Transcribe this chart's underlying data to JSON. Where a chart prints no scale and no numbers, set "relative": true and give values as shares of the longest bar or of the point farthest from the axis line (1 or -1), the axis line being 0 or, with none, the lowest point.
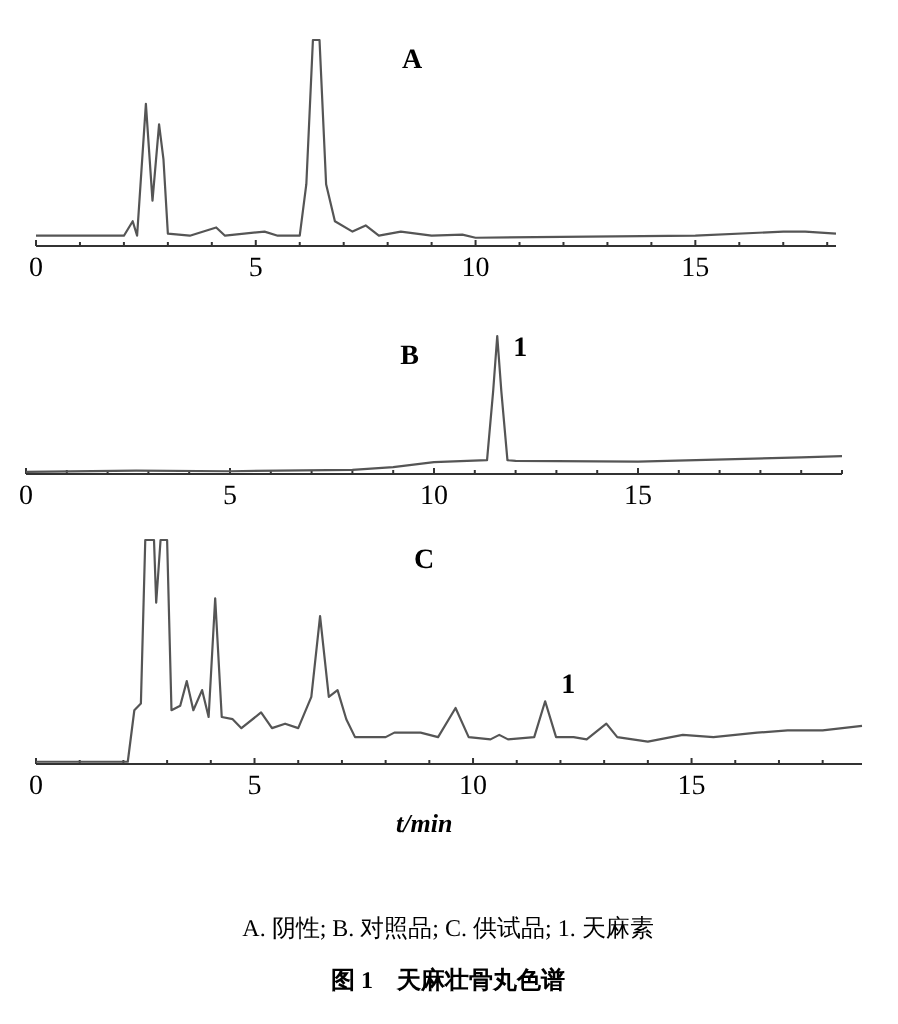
{
  "chart_data": [
    {
      "type": "line",
      "relative": true,
      "xlim": [
        0,
        18.2
      ],
      "xticks": [
        0,
        {
          "value": 1,
          "label": null
        },
        {
          "value": 2,
          "label": null
        },
        {
          "value": 3,
          "label": null
        },
        {
          "value": 4,
          "label": null
        },
        5,
        {
          "value": 6,
          "label": null
        },
        {
          "value": 7,
          "label": null
        },
        {
          "value": 8,
          "label": null
        },
        {
          "value": 9,
          "label": null
        },
        10,
        {
          "value": 11,
          "label": null
        },
        {
          "value": 12,
          "label": null
        },
        {
          "value": 13,
          "label": null
        },
        {
          "value": 14,
          "label": null
        },
        15,
        {
          "value": 16,
          "label": null
        },
        {
          "value": 17,
          "label": null
        },
        {
          "value": 18,
          "label": null
        }
      ],
      "annotations": [
        "A"
      ],
      "series": [
        {
          "color": "#555555",
          "x": [
            0,
            2.0,
            2.2,
            2.3,
            2.5,
            2.65,
            2.8,
            2.9,
            3.0,
            3.5,
            4.1,
            4.3,
            5.2,
            5.5,
            6.0,
            6.15,
            6.3,
            6.45,
            6.6,
            6.8,
            7.2,
            7.5,
            7.8,
            8.3,
            9,
            9.7,
            10,
            15,
            17,
            17.5,
            18.2
          ],
          "values": [
            0.05,
            0.05,
            0.12,
            0.05,
            0.69,
            0.22,
            0.59,
            0.42,
            0.06,
            0.05,
            0.09,
            0.05,
            0.07,
            0.05,
            0.05,
            0.3,
            1,
            1,
            0.3,
            0.12,
            0.07,
            0.1,
            0.05,
            0.07,
            0.05,
            0.055,
            0.04,
            0.05,
            0.07,
            0.07,
            0.06
          ]
        }
      ]
    },
    {
      "type": "line",
      "relative": true,
      "xlim": [
        0,
        20
      ],
      "xticks": [
        0,
        {
          "value": 1,
          "label": null
        },
        {
          "value": 2,
          "label": null
        },
        {
          "value": 3,
          "label": null
        },
        {
          "value": 4,
          "label": null
        },
        5,
        {
          "value": 6,
          "label": null
        },
        {
          "value": 7,
          "label": null
        },
        {
          "value": 8,
          "label": null
        },
        {
          "value": 9,
          "label": null
        },
        10,
        {
          "value": 11,
          "label": null
        },
        {
          "value": 12,
          "label": null
        },
        {
          "value": 13,
          "label": null
        },
        {
          "value": 14,
          "label": null
        },
        15,
        {
          "value": 16,
          "label": null
        },
        {
          "value": 17,
          "label": null
        },
        {
          "value": 18,
          "label": null
        },
        {
          "value": 19,
          "label": null
        },
        {
          "value": 20,
          "label": null
        }
      ],
      "annotations": [
        "B",
        {
          "text": "1",
          "x": 11.55,
          "y": 1
        }
      ],
      "series": [
        {
          "color": "#555555",
          "x": [
            0,
            2.7,
            5,
            8,
            9,
            10,
            11.3,
            11.45,
            11.55,
            11.65,
            11.8,
            12,
            15,
            19,
            20
          ],
          "values": [
            0.016,
            0.025,
            0.02,
            0.03,
            0.05,
            0.086,
            0.1,
            0.6,
            1,
            0.6,
            0.1,
            0.095,
            0.09,
            0.12,
            0.13
          ]
        }
      ]
    },
    {
      "type": "line",
      "relative": true,
      "xlim": [
        0,
        18.9
      ],
      "xticks": [
        0,
        {
          "value": 1,
          "label": null
        },
        {
          "value": 2,
          "label": null
        },
        {
          "value": 3,
          "label": null
        },
        {
          "value": 4,
          "label": null
        },
        5,
        {
          "value": 6,
          "label": null
        },
        {
          "value": 7,
          "label": null
        },
        {
          "value": 8,
          "label": null
        },
        {
          "value": 9,
          "label": null
        },
        10,
        {
          "value": 11,
          "label": null
        },
        {
          "value": 12,
          "label": null
        },
        {
          "value": 13,
          "label": null
        },
        {
          "value": 14,
          "label": null
        },
        15,
        {
          "value": 16,
          "label": null
        },
        {
          "value": 17,
          "label": null
        },
        {
          "value": 18,
          "label": null
        }
      ],
      "xlabel": "t/min",
      "title": "图 1　天麻壮骨丸色谱",
      "annotations": [
        "C",
        {
          "text": "1",
          "x": 11.65,
          "y": 0.28
        },
        "A. 阴性; B. 对照品; C. 供试品; 1. 天麻素"
      ],
      "series": [
        {
          "color": "#555555",
          "x": [
            0,
            2.1,
            2.25,
            2.4,
            2.5,
            2.7,
            2.75,
            2.85,
            3.0,
            3.1,
            3.3,
            3.45,
            3.6,
            3.8,
            3.95,
            4.1,
            4.25,
            4.5,
            4.7,
            5.15,
            5.4,
            5.7,
            6.0,
            6.3,
            6.5,
            6.7,
            6.9,
            7.1,
            7.3,
            8.0,
            8.2,
            8.8,
            9.2,
            9.6,
            9.9,
            10.4,
            10.6,
            10.8,
            11.4,
            11.65,
            11.9,
            12.3,
            12.6,
            13.05,
            13.3,
            14,
            14.8,
            15.5,
            16.5,
            17.2,
            18,
            18.9
          ],
          "values": [
            0.01,
            0.01,
            0.24,
            0.27,
            1,
            1,
            0.72,
            1,
            1,
            0.24,
            0.26,
            0.37,
            0.24,
            0.33,
            0.21,
            0.74,
            0.21,
            0.2,
            0.16,
            0.23,
            0.16,
            0.18,
            0.16,
            0.3,
            0.66,
            0.3,
            0.33,
            0.2,
            0.12,
            0.12,
            0.14,
            0.14,
            0.12,
            0.25,
            0.12,
            0.11,
            0.13,
            0.11,
            0.12,
            0.28,
            0.12,
            0.12,
            0.11,
            0.18,
            0.12,
            0.1,
            0.13,
            0.12,
            0.14,
            0.15,
            0.15,
            0.17
          ]
        }
      ]
    }
  ]
}
